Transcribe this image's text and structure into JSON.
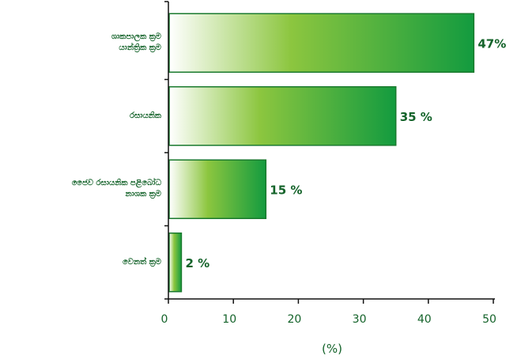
{
  "chart_data": {
    "type": "bar",
    "orientation": "horizontal",
    "categories": [
      [
        "ශාකපාලක ක්‍රම",
        "යාන්ත්‍රික ක්‍රම"
      ],
      [
        "රසායනික"
      ],
      [
        "ජෛව රසායනික පළිබෝධ",
        "නාශක ක්‍රම"
      ],
      [
        "වෙනත් ක්‍රම"
      ]
    ],
    "values": [
      47,
      35,
      15,
      2
    ],
    "value_labels": [
      "47%",
      "35 %",
      "15 %",
      "2 %"
    ],
    "xlabel": "(%)",
    "xlim": [
      0,
      50
    ],
    "xticks": [
      0,
      10,
      20,
      30,
      40,
      50
    ],
    "grid": false,
    "colors": {
      "bar_start": "#ffffff",
      "bar_mid": "#8cc63f",
      "bar_end": "#139b3f",
      "bar_border": "#1a7a2e",
      "text": "#14632a",
      "axis": "#111111"
    }
  }
}
